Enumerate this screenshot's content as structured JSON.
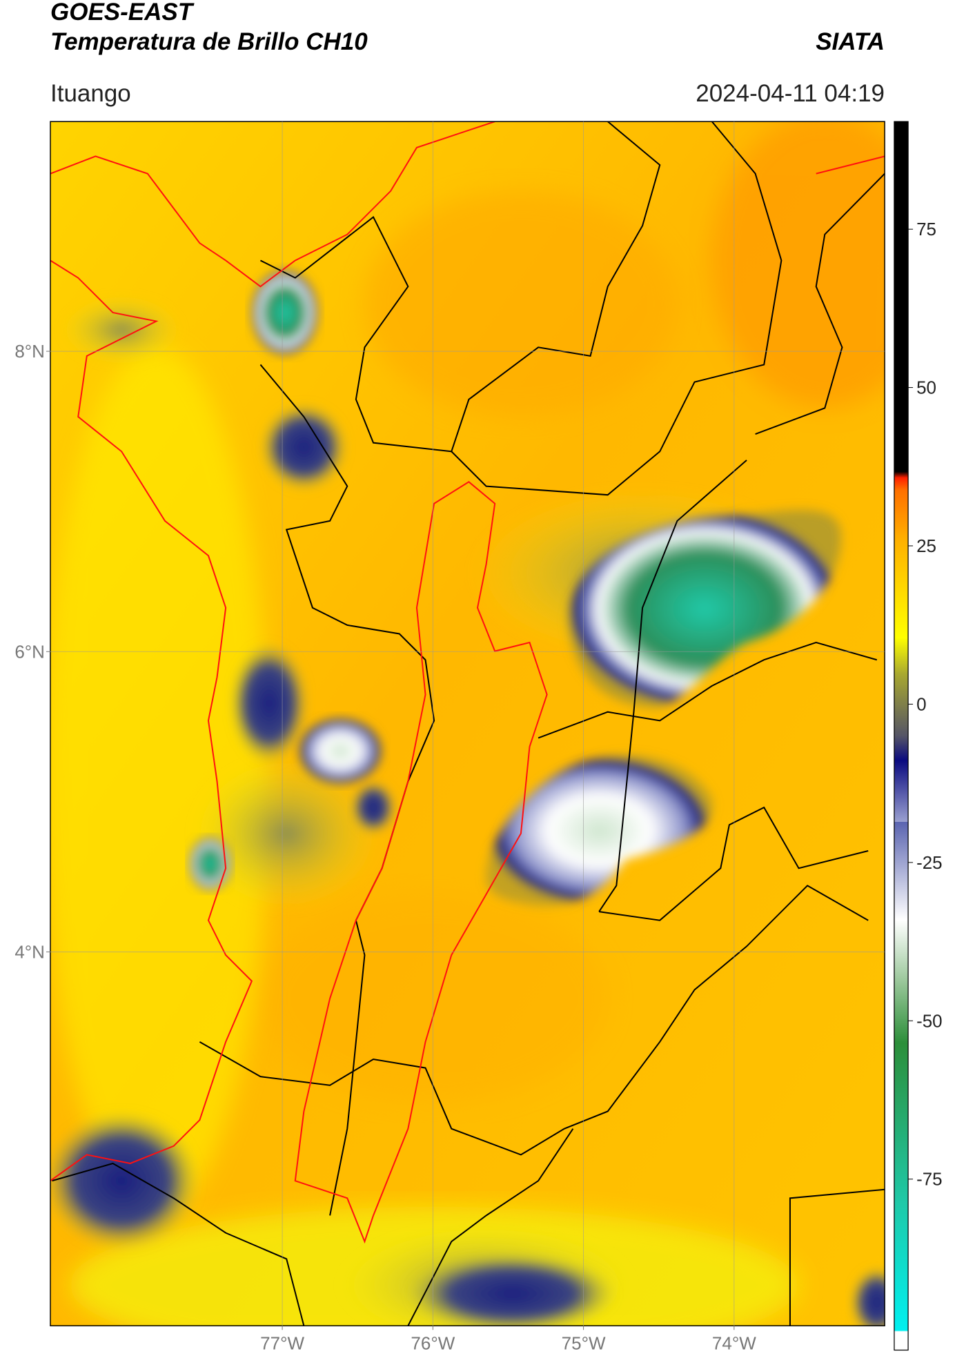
{
  "header": {
    "title": "GOES-EAST",
    "subtitle": "Temperatura de Brillo CH10",
    "source": "SIATA",
    "location": "Ituango",
    "timestamp": "2024-04-11 04:19"
  },
  "map": {
    "xlim": [
      -78.54,
      -73.0
    ],
    "ylim": [
      1.51,
      9.53
    ],
    "xticks": [
      {
        "value": -77,
        "label": "77°W"
      },
      {
        "value": -76,
        "label": "76°W"
      },
      {
        "value": -75,
        "label": "75°W"
      },
      {
        "value": -74,
        "label": "74°W"
      }
    ],
    "yticks": [
      {
        "value": 8,
        "label": "8°N"
      },
      {
        "value": 6,
        "label": "6°N"
      },
      {
        "value": 4,
        "label": "4°N"
      }
    ],
    "grid": true,
    "colorbar": {
      "lim": [
        -102,
        92
      ],
      "ticks": [
        75,
        50,
        25,
        0,
        -25,
        -50,
        -75
      ]
    }
  }
}
